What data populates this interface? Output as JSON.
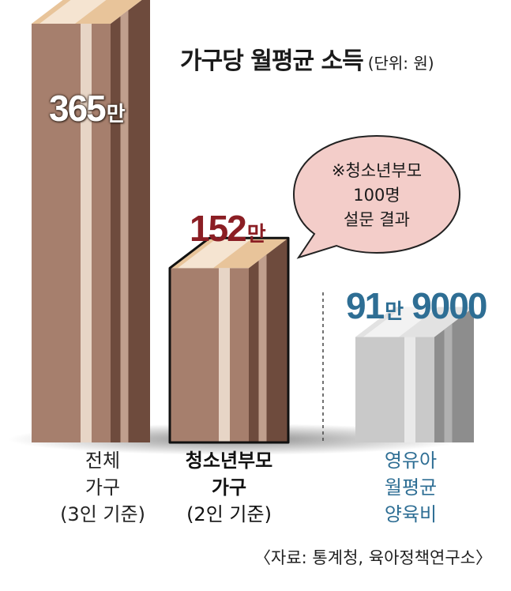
{
  "chart_data": {
    "type": "bar",
    "title": "가구당 월평균 소득",
    "unit": "(단위: 원)",
    "categories": [
      "전체 가구 (3인 기준)",
      "청소년부모 가구 (2인 기준)",
      "영유아 월평균 양육비"
    ],
    "values": [
      3650000,
      1520000,
      919000
    ],
    "value_labels": [
      {
        "num": "365",
        "man": "만",
        "rest": ""
      },
      {
        "num": "152",
        "man": "만",
        "rest": ""
      },
      {
        "num": "91",
        "man": "만",
        "rest": "9000"
      }
    ],
    "category_lines": [
      [
        "전체",
        "가구",
        "(3인 기준)"
      ],
      [
        "청소년부모",
        "가구",
        "(2인 기준)"
      ],
      [
        "영유아",
        "월평균",
        "양육비"
      ]
    ],
    "note_lines": [
      "※청소년부모",
      "100명",
      "설문 결과"
    ],
    "source": "〈자료: 통계청, 육아정책연구소〉",
    "colors": {
      "bar_front": "#a67f6d",
      "bar_side": "#6e4b3d",
      "bar_top": "#e8c49a",
      "gray_front": "#c9c9c9",
      "gray_side": "#8d8d8d",
      "gray_top": "#e2e2e2",
      "label_red": "#8b1e24",
      "label_blue": "#2e6e94"
    }
  }
}
